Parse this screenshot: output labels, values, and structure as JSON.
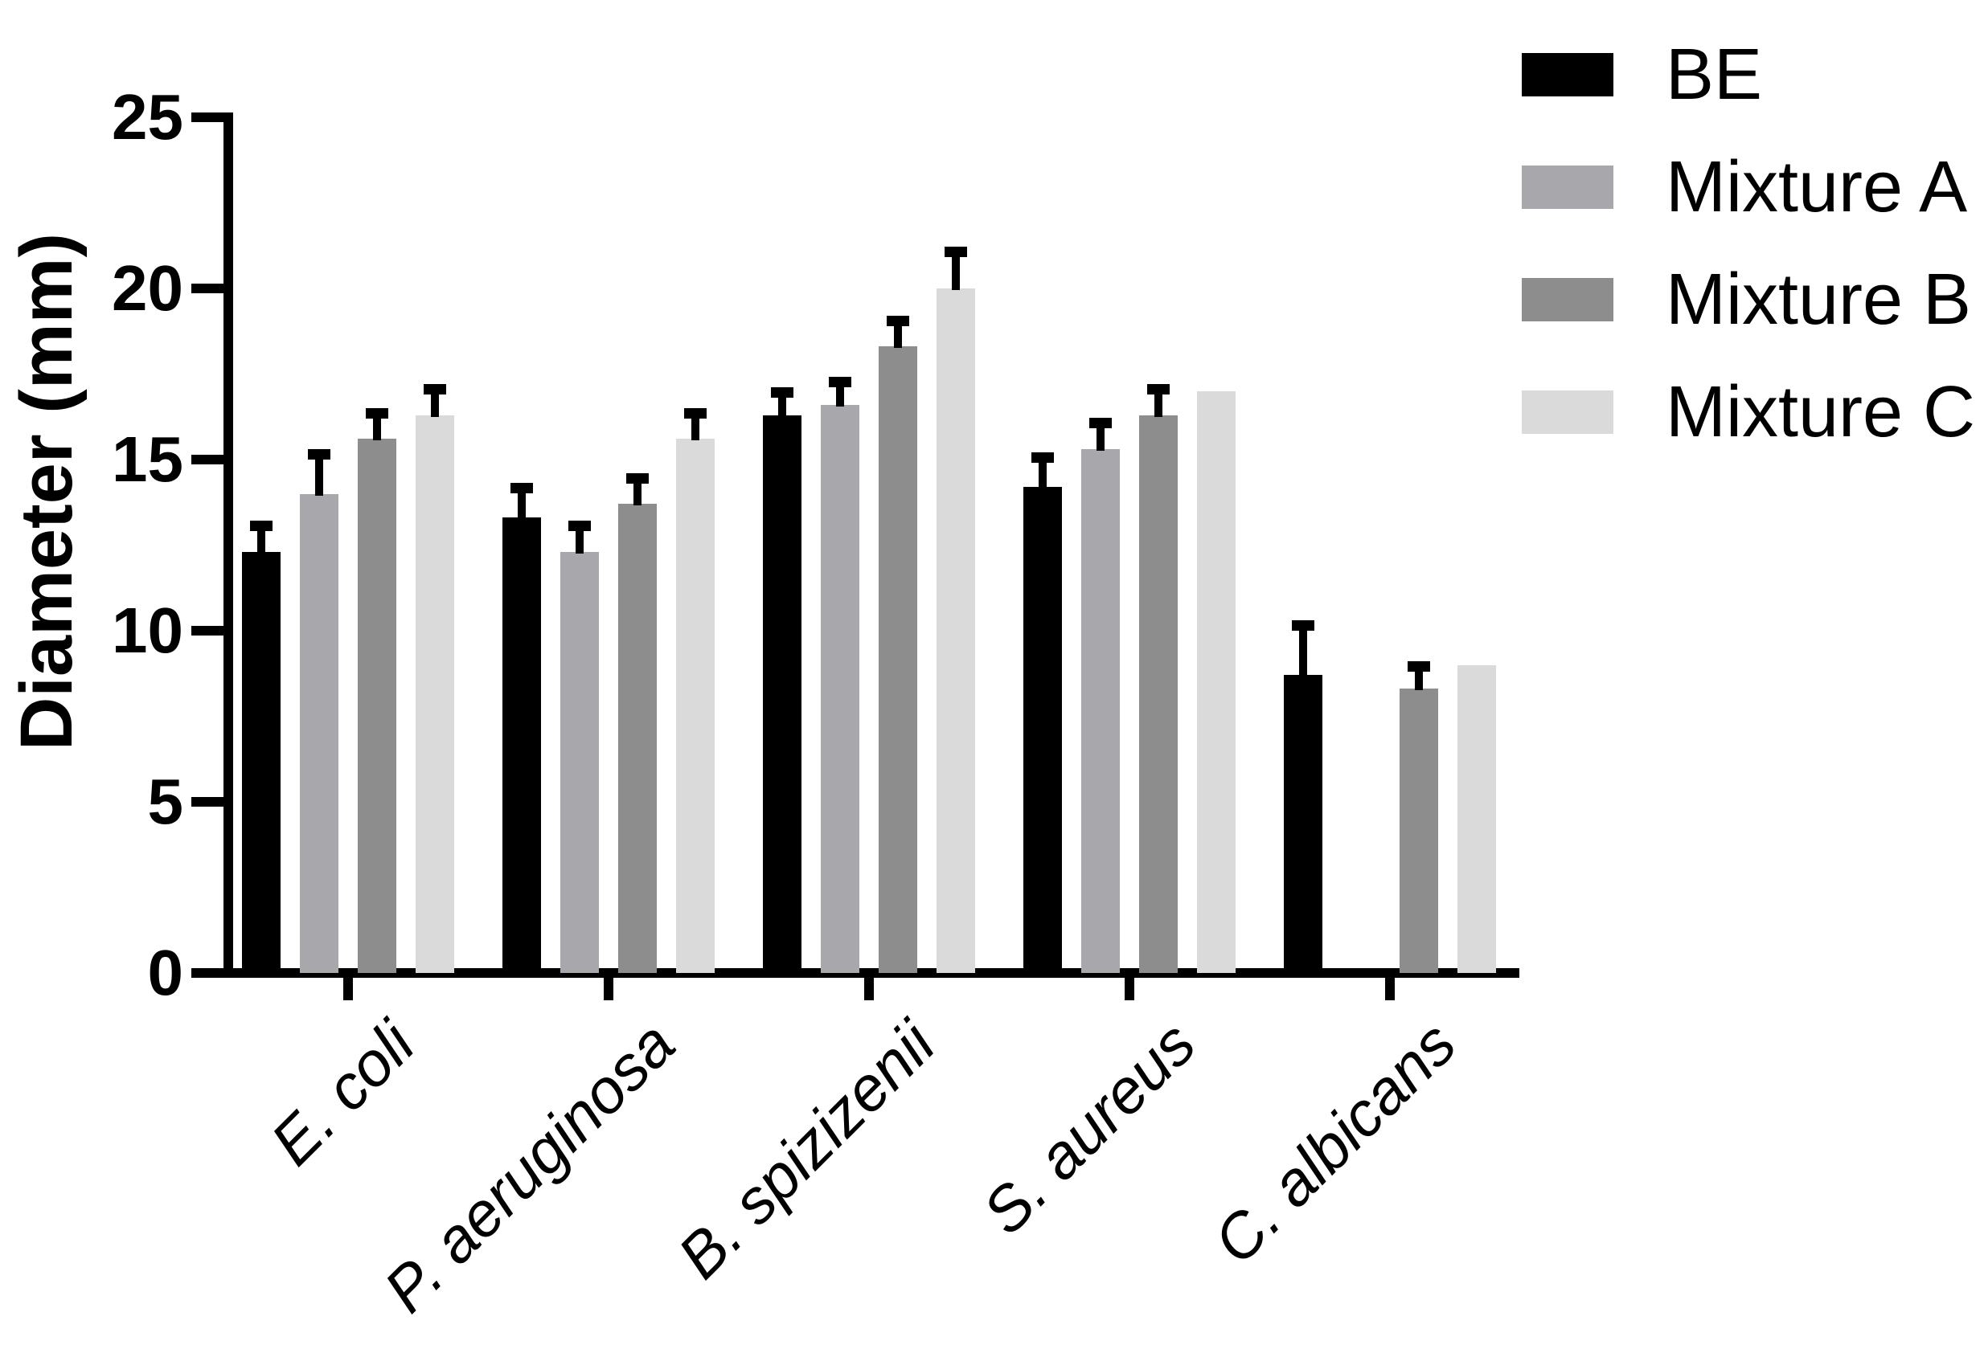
{
  "chart_data": {
    "type": "bar",
    "title": "",
    "xlabel": "",
    "ylabel": "Diameter (mm)",
    "ylim": [
      0,
      25
    ],
    "yticks": [
      0,
      5,
      10,
      15,
      20,
      25
    ],
    "grid": false,
    "legend_position": "top-right",
    "error_bars": "plus-sd-with-caps",
    "background_color": "#ffffff",
    "axis_color": "#000000",
    "categories": [
      "E. coli",
      "P. aeruginosa",
      "B. spizizenii",
      "S. aureus",
      "C. albicans"
    ],
    "categories_style": "italic, rotated 45 degrees",
    "series": [
      {
        "name": "BE",
        "color": "#000000",
        "values": [
          12.3,
          13.3,
          16.3,
          14.2,
          8.7
        ],
        "errors_plus": [
          0.7,
          0.8,
          0.6,
          0.8,
          1.4
        ]
      },
      {
        "name": "Mixture A",
        "color": "#a8a8ac",
        "values": [
          14.0,
          12.3,
          16.6,
          15.3,
          null
        ],
        "errors_plus": [
          1.1,
          0.7,
          0.6,
          0.7,
          null
        ]
      },
      {
        "name": "Mixture B",
        "color": "#8d8d8d",
        "values": [
          15.6,
          13.7,
          18.3,
          16.3,
          8.3
        ],
        "errors_plus": [
          0.7,
          0.7,
          0.7,
          0.7,
          0.6
        ]
      },
      {
        "name": "Mixture C",
        "color": "#dadada",
        "values": [
          16.3,
          15.6,
          20.0,
          17.0,
          9.0
        ],
        "errors_plus": [
          0.7,
          0.7,
          1.0,
          null,
          null
        ]
      }
    ]
  }
}
